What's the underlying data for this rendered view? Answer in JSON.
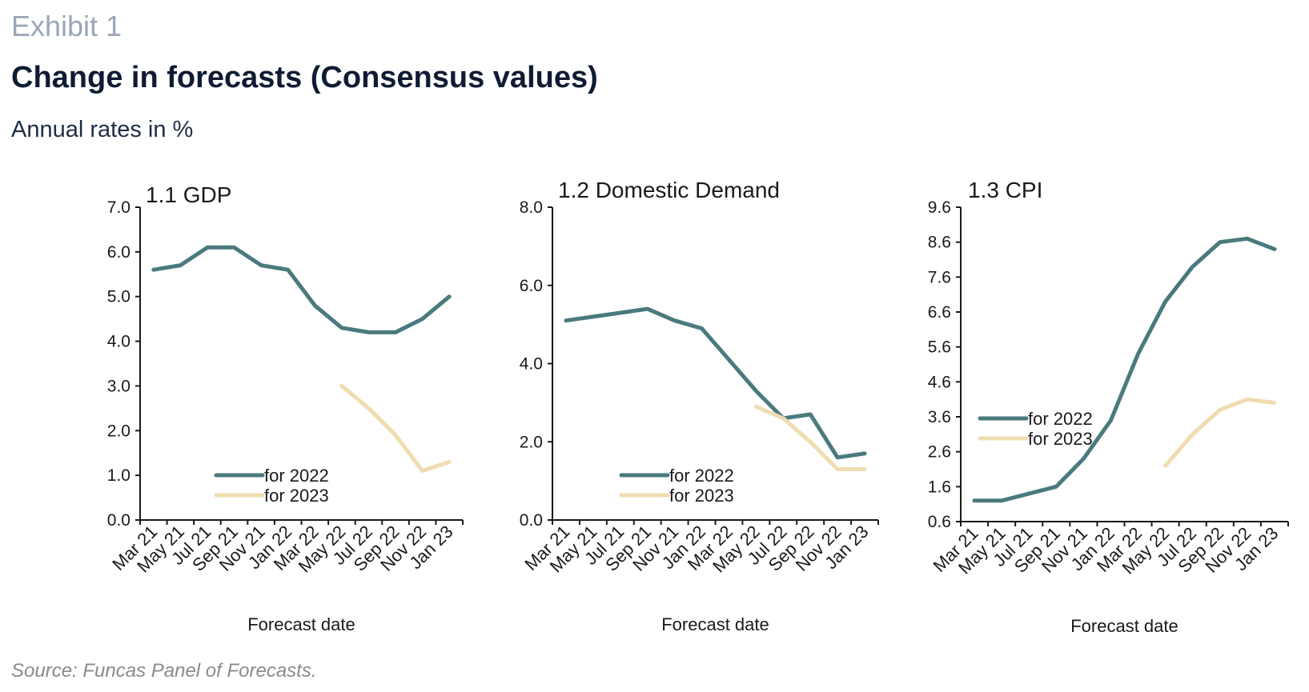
{
  "header": {
    "exhibit": "Exhibit 1",
    "title": "Change in forecasts (Consensus values)",
    "subtitle": "Annual rates in %"
  },
  "footer": {
    "source": "Source: Funcas Panel of Forecasts."
  },
  "colors": {
    "for_2022": "#4a7a7e",
    "for_2023": "#efdcb0",
    "axis": "#1a1a1a"
  },
  "chart_data": [
    {
      "type": "line",
      "title": "1.1 GDP",
      "xlabel": "Forecast date",
      "ylabel": "",
      "categories": [
        "Mar 21",
        "May 21",
        "Jul 21",
        "Sep 21",
        "Nov 21",
        "Jan 22",
        "Mar 22",
        "May 22",
        "Jul 22",
        "Sep 22",
        "Nov 22",
        "Jan 23"
      ],
      "ylim": [
        0,
        7
      ],
      "yticks": [
        "0.0",
        "1.0",
        "2.0",
        "3.0",
        "4.0",
        "5.0",
        "6.0",
        "7.0"
      ],
      "legend_position": "bottom-center",
      "series": [
        {
          "name": "for 2022",
          "values": [
            5.6,
            5.7,
            6.1,
            6.1,
            5.7,
            5.6,
            4.8,
            4.3,
            4.2,
            4.2,
            4.5,
            5.0
          ]
        },
        {
          "name": "for 2023",
          "values": [
            null,
            null,
            null,
            null,
            null,
            null,
            null,
            3.0,
            2.5,
            1.9,
            1.1,
            1.3
          ]
        }
      ]
    },
    {
      "type": "line",
      "title": "1.2 Domestic Demand",
      "xlabel": "Forecast date",
      "ylabel": "",
      "categories": [
        "Mar 21",
        "May 21",
        "Jul 21",
        "Sep 21",
        "Nov 21",
        "Jan 22",
        "Mar 22",
        "May 22",
        "Jul 22",
        "Sep 22",
        "Nov 22",
        "Jan 23"
      ],
      "ylim": [
        0,
        8
      ],
      "yticks": [
        "0.0",
        "2.0",
        "4.0",
        "6.0",
        "8.0"
      ],
      "legend_position": "bottom-center",
      "series": [
        {
          "name": "for 2022",
          "values": [
            5.1,
            5.2,
            5.3,
            5.4,
            5.1,
            4.9,
            4.1,
            3.3,
            2.6,
            2.7,
            1.6,
            1.7
          ]
        },
        {
          "name": "for 2023",
          "values": [
            null,
            null,
            null,
            null,
            null,
            null,
            null,
            2.9,
            2.6,
            2.0,
            1.3,
            1.3
          ]
        }
      ]
    },
    {
      "type": "line",
      "title": "1.3 CPI",
      "xlabel": "Forecast date",
      "ylabel": "",
      "categories": [
        "Mar 21",
        "May 21",
        "Jul 21",
        "Sep 21",
        "Nov 21",
        "Jan 22",
        "Mar 22",
        "May 22",
        "Jul 22",
        "Sep 22",
        "Nov 22",
        "Jan 23"
      ],
      "ylim": [
        0.6,
        9.6
      ],
      "yticks": [
        "0.6",
        "1.6",
        "2.6",
        "3.6",
        "4.6",
        "5.6",
        "6.6",
        "7.6",
        "8.6",
        "9.6"
      ],
      "legend_position": "middle-left",
      "series": [
        {
          "name": "for 2022",
          "values": [
            1.2,
            1.2,
            1.4,
            1.6,
            2.4,
            3.5,
            5.4,
            6.9,
            7.9,
            8.6,
            8.7,
            8.4
          ]
        },
        {
          "name": "for 2023",
          "values": [
            null,
            null,
            null,
            null,
            null,
            null,
            null,
            2.2,
            3.1,
            3.8,
            4.1,
            4.0
          ]
        }
      ]
    }
  ]
}
